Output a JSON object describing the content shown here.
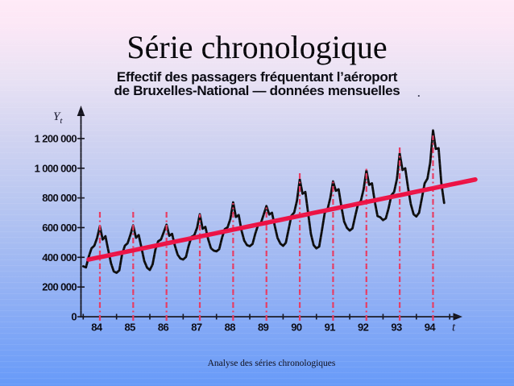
{
  "slide": {
    "title": "Série chronologique",
    "subtitle_line1": "Effectif des passagers fréquentant l’aéroport",
    "subtitle_line2": "de Bruxelles-National — données mensuelles",
    "stray_period": ".",
    "footer": "Analyse des séries chronologiques"
  },
  "colors": {
    "curve": "#0d0d0d",
    "trend": "#ec1245",
    "peak_line": "#e73b62",
    "axis": "#14141e",
    "bg_top": "#ffeaf7",
    "bg_bottom": "#679af8"
  },
  "chart_data": {
    "type": "line",
    "title": "Effectif des passagers fréquentant l’aéroport de Bruxelles-National — données mensuelles",
    "xlabel": "t",
    "ylabel": "Yt",
    "frequency": "monthly",
    "x_start_year": 1984,
    "x_end": "November 1994",
    "xlim": [
      84,
      95.9
    ],
    "ylim": [
      0,
      1300000
    ],
    "grid": false,
    "legend": "none",
    "x_tick_labels": [
      "84",
      "85",
      "86",
      "87",
      "88",
      "89",
      "90",
      "91",
      "92",
      "93",
      "94"
    ],
    "y_tick_labels": [
      "0",
      "200 000",
      "400 000",
      "600 000",
      "800 000",
      "1 000 000",
      "1 200 000"
    ],
    "y_tick_values": [
      0,
      200000,
      400000,
      600000,
      800000,
      1000000,
      1200000
    ],
    "axis_labels": {
      "y_main": "Y",
      "y_sub": "t",
      "x": "t"
    },
    "series": [
      {
        "name": "effectif mensuel des passagers",
        "color": "#0d0d0d",
        "start_x": 84.0,
        "x_step": 0.0833333,
        "values": [
          340000,
          332000,
          405000,
          460000,
          478000,
          530000,
          610000,
          520000,
          542000,
          450000,
          360000,
          305000,
          296000,
          312000,
          420000,
          478000,
          495000,
          552000,
          615000,
          532000,
          550000,
          462000,
          375000,
          330000,
          315000,
          352000,
          452000,
          508000,
          520000,
          568000,
          620000,
          545000,
          558000,
          480000,
          418000,
          392000,
          385000,
          402000,
          478000,
          538000,
          548000,
          598000,
          690000,
          592000,
          605000,
          522000,
          462000,
          445000,
          440000,
          455000,
          532000,
          590000,
          602000,
          658000,
          770000,
          672000,
          685000,
          582000,
          512000,
          482000,
          475000,
          490000,
          560000,
          618000,
          630000,
          688000,
          745000,
          688000,
          700000,
          610000,
          530000,
          492000,
          477000,
          498000,
          590000,
          680000,
          702000,
          782000,
          925000,
          828000,
          840000,
          700000,
          558000,
          482000,
          460000,
          472000,
          582000,
          700000,
          722000,
          800000,
          912000,
          848000,
          858000,
          740000,
          640000,
          598000,
          580000,
          595000,
          680000,
          758000,
          780000,
          858000,
          985000,
          888000,
          898000,
          778000,
          678000,
          670000,
          650000,
          662000,
          730000,
          818000,
          840000,
          928000,
          1100000,
          988000,
          1000000,
          868000,
          758000,
          690000,
          675000,
          700000,
          800000,
          898000,
          930000,
          1038000,
          1255000,
          1130000,
          1135000,
          900000,
          766000
        ]
      },
      {
        "name": "tendance (droite d’ajustement linéaire)",
        "color": "#ec1245",
        "x": [
          84.16,
          95.77
        ],
        "values": [
          385000,
          924000
        ]
      }
    ],
    "peak_lines": {
      "style": "dash-dot vertical markers at each summer peak",
      "color": "#e73b62",
      "x": [
        84.5,
        85.5,
        86.5,
        87.5,
        88.5,
        89.5,
        90.5,
        91.5,
        92.5,
        93.5,
        94.5
      ],
      "top_values": [
        720000,
        725000,
        720000,
        690000,
        765000,
        748000,
        980000,
        920000,
        1010000,
        1145000,
        1220000
      ]
    }
  }
}
